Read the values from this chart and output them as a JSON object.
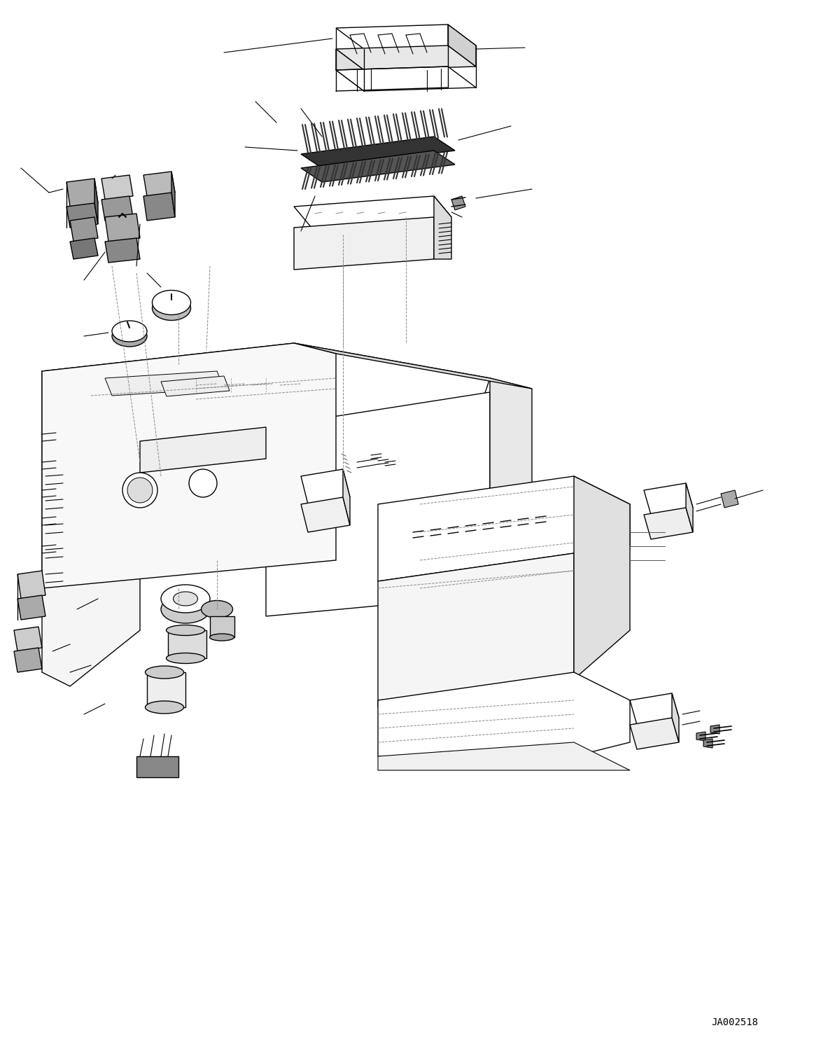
{
  "figure_width": 11.63,
  "figure_height": 14.88,
  "dpi": 100,
  "background_color": "#ffffff",
  "line_color": "#000000",
  "line_width": 1.0,
  "reference_code": "JA002518",
  "title": ""
}
